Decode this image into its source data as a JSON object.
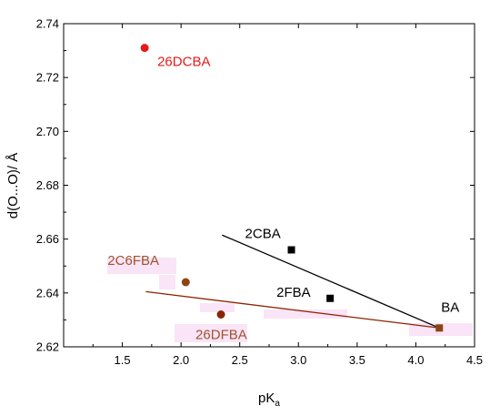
{
  "chart_data": {
    "type": "scatter",
    "xlabel": "pK",
    "xlabel_subscript": "a",
    "ylabel": "d(O...O)/ Å",
    "xlim": [
      1.0,
      4.5
    ],
    "ylim": [
      2.62,
      2.74
    ],
    "x_ticks": [
      "1.5",
      "2.0",
      "2.5",
      "3.0",
      "3.5",
      "4.0",
      "4.5"
    ],
    "y_ticks": [
      "2.62",
      "2.64",
      "2.66",
      "2.68",
      "2.70",
      "2.72",
      "2.74"
    ],
    "x_tick_values": [
      1.5,
      2.0,
      2.5,
      3.0,
      3.5,
      4.0,
      4.5
    ],
    "y_tick_values": [
      2.62,
      2.64,
      2.66,
      2.68,
      2.7,
      2.72,
      2.74
    ],
    "grid": false,
    "points": [
      {
        "label": "26DCBA",
        "x": 1.69,
        "y": 2.731,
        "marker": "circle",
        "color": "#e41a1a",
        "label_color": "#e41a1a"
      },
      {
        "label": "2C6FBA",
        "x": 2.04,
        "y": 2.644,
        "marker": "circle",
        "color": "#8b4513",
        "label_color": "#a0522d"
      },
      {
        "label": "26DFBA",
        "x": 2.34,
        "y": 2.632,
        "marker": "circle",
        "color": "#8b2500",
        "label_color": "#a0522d"
      },
      {
        "label": "2CBA",
        "x": 2.94,
        "y": 2.656,
        "marker": "square",
        "color": "#000000",
        "label_color": "#000000"
      },
      {
        "label": "2FBA",
        "x": 3.27,
        "y": 2.638,
        "marker": "square",
        "color": "#000000",
        "label_color": "#000000"
      },
      {
        "label": "BA",
        "x": 4.2,
        "y": 2.627,
        "marker": "square",
        "color": "#8b4513",
        "label_color": "#000000"
      }
    ],
    "fit_lines": [
      {
        "color": "#000000",
        "x": [
          2.35,
          4.2
        ],
        "y": [
          2.6615,
          2.627
        ]
      },
      {
        "color": "#8b2500",
        "x": [
          1.7,
          4.2
        ],
        "y": [
          2.6405,
          2.627
        ]
      }
    ]
  }
}
